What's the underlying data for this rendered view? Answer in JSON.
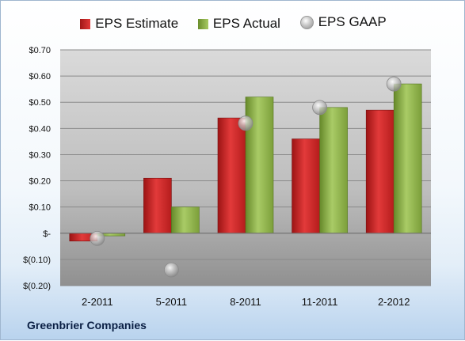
{
  "chart_data": {
    "type": "bar",
    "categories": [
      "2-2011",
      "5-2011",
      "8-2011",
      "11-2011",
      "2-2012"
    ],
    "series": [
      {
        "name": "EPS Estimate",
        "kind": "bar",
        "color": "#c81f1f",
        "values": [
          -0.03,
          0.21,
          0.44,
          0.36,
          0.47
        ]
      },
      {
        "name": "EPS Actual",
        "kind": "bar",
        "color": "#8db045",
        "values": [
          -0.01,
          0.1,
          0.52,
          0.48,
          0.57
        ]
      },
      {
        "name": "EPS GAAP",
        "kind": "marker",
        "color": "#bbbbbb",
        "values": [
          -0.02,
          -0.14,
          0.42,
          0.48,
          0.57
        ]
      }
    ],
    "y_ticks": [
      -0.2,
      -0.1,
      0,
      0.1,
      0.2,
      0.3,
      0.4,
      0.5,
      0.6,
      0.7
    ],
    "y_tick_labels": [
      "$(0.20)",
      "$(0.10)",
      "$-",
      "$0.10",
      "$0.20",
      "$0.30",
      "$0.40",
      "$0.50",
      "$0.60",
      "$0.70"
    ],
    "ylim": [
      -0.2,
      0.7
    ],
    "grid": true,
    "legend_position": "top-center"
  },
  "legend": {
    "estimate": "EPS Estimate",
    "actual": "EPS Actual",
    "gaap": "EPS GAAP"
  },
  "footer": {
    "company": "Greenbrier Companies"
  }
}
